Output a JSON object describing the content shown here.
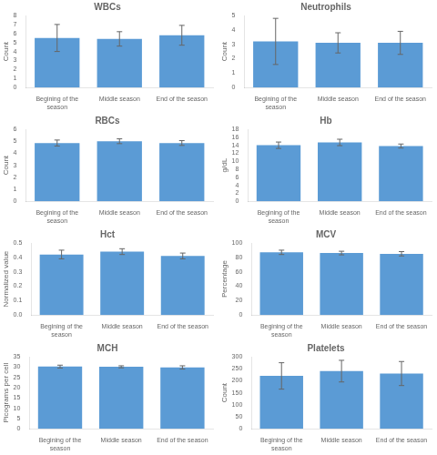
{
  "chart_data": [
    {
      "type": "bar",
      "title": "WBCs",
      "ylabel": "Count",
      "categories": [
        "Begining of the\nseason",
        "Middle season",
        "End of the season"
      ],
      "values": [
        5.5,
        5.4,
        5.8
      ],
      "errors": [
        1.5,
        0.8,
        1.1
      ],
      "color": "#5b9bd5",
      "ylim": [
        0,
        8
      ],
      "yticks": [
        0,
        1,
        2,
        3,
        4,
        5,
        6,
        7,
        8
      ],
      "grid": false
    },
    {
      "type": "bar",
      "title": "Neutrophils",
      "ylabel": "Count",
      "categories": [
        "Begining of the\nseason",
        "Middle season",
        "End of the season"
      ],
      "values": [
        3.2,
        3.1,
        3.1
      ],
      "errors": [
        1.6,
        0.7,
        0.8
      ],
      "color": "#5b9bd5",
      "ylim": [
        0,
        5
      ],
      "yticks": [
        0,
        1,
        2,
        3,
        4,
        5
      ],
      "grid": false
    },
    {
      "type": "bar",
      "title": "RBCs",
      "ylabel": "Count",
      "categories": [
        "Begining of the\nseason",
        "Middle season",
        "End of the season"
      ],
      "values": [
        4.85,
        5.0,
        4.85
      ],
      "errors": [
        0.25,
        0.2,
        0.2
      ],
      "color": "#5b9bd5",
      "ylim": [
        0,
        6
      ],
      "yticks": [
        0,
        1,
        2,
        3,
        4,
        5,
        6
      ],
      "grid": false
    },
    {
      "type": "bar",
      "title": "Hb",
      "ylabel": "g/dL",
      "categories": [
        "Begining of the\nseason",
        "Middle season",
        "End of the season"
      ],
      "values": [
        14.0,
        14.7,
        13.8
      ],
      "errors": [
        0.8,
        0.8,
        0.5
      ],
      "color": "#5b9bd5",
      "ylim": [
        0,
        18
      ],
      "yticks": [
        0,
        2,
        4,
        6,
        8,
        10,
        12,
        14,
        16,
        18
      ],
      "grid": false
    },
    {
      "type": "bar",
      "title": "Hct",
      "ylabel": "Normalized value",
      "categories": [
        "Begining of the\nseason",
        "Middle season",
        "End of the season"
      ],
      "values": [
        0.42,
        0.44,
        0.41
      ],
      "errors": [
        0.03,
        0.02,
        0.02
      ],
      "color": "#5b9bd5",
      "ylim": [
        0,
        0.5
      ],
      "yticks": [
        {
          "value": 0.0,
          "label": "0.0"
        },
        0.1,
        0.2,
        0.3,
        0.4,
        0.5
      ],
      "grid": false
    },
    {
      "type": "bar",
      "title": "MCV",
      "ylabel": "Percentage",
      "categories": [
        "Begining of the\nseason",
        "Middle season",
        "End of the season"
      ],
      "values": [
        87,
        86,
        85
      ],
      "errors": [
        3.0,
        2.5,
        3.0
      ],
      "color": "#5b9bd5",
      "ylim": [
        0,
        100
      ],
      "yticks": [
        0,
        20,
        40,
        60,
        80,
        100
      ],
      "grid": false
    },
    {
      "type": "bar",
      "title": "MCH",
      "ylabel": "Picograms per cell",
      "categories": [
        "Begining of the\nseason",
        "Middle season",
        "End of the season"
      ],
      "values": [
        30.2,
        30.1,
        29.8
      ],
      "errors": [
        0.7,
        0.5,
        0.8
      ],
      "color": "#5b9bd5",
      "ylim": [
        0,
        35
      ],
      "yticks": [
        0,
        5,
        10,
        15,
        20,
        25,
        30,
        35
      ],
      "grid": false
    },
    {
      "type": "bar",
      "title": "Platelets",
      "ylabel": "Count",
      "categories": [
        "Begining of the\nseason",
        "Middle season",
        "End of the season"
      ],
      "values": [
        220,
        240,
        230
      ],
      "errors": [
        55,
        45,
        50
      ],
      "color": "#5b9bd5",
      "ylim": [
        0,
        300
      ],
      "yticks": [
        0,
        50,
        100,
        150,
        200,
        250,
        300
      ],
      "grid": false
    }
  ]
}
